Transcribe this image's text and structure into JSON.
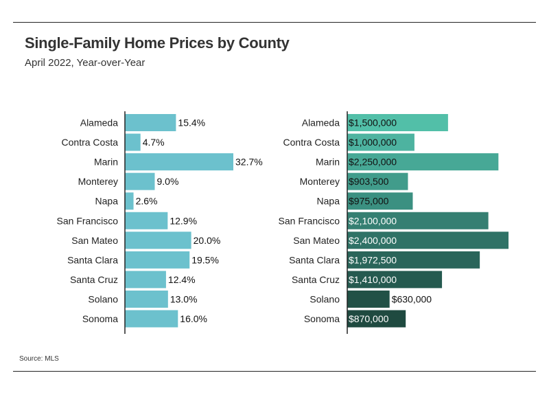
{
  "header": {
    "title": "Single-Family Home Prices by County",
    "subtitle": "April 2022, Year-over-Year"
  },
  "footer": {
    "source": "Source:  MLS"
  },
  "chart_data": [
    {
      "type": "bar",
      "orientation": "horizontal",
      "title": "",
      "xlabel": "",
      "ylabel": "",
      "grid": false,
      "categories": [
        "Alameda",
        "Contra Costa",
        "Marin",
        "Monterey",
        "Napa",
        "San Francisco",
        "San Mateo",
        "Santa Clara",
        "Santa Cruz",
        "Solano",
        "Sonoma"
      ],
      "values": [
        15.4,
        4.7,
        32.7,
        9.0,
        2.6,
        12.9,
        20.0,
        19.5,
        12.4,
        13.0,
        16.0
      ],
      "labels": [
        "15.4%",
        "4.7%",
        "32.7%",
        "9.0%",
        "2.6%",
        "12.9%",
        "20.0%",
        "19.5%",
        "12.4%",
        "13.0%",
        "16.0%"
      ],
      "xlim": [
        0,
        35
      ],
      "color": "#6cc1cd"
    },
    {
      "type": "bar",
      "orientation": "horizontal",
      "title": "",
      "xlabel": "",
      "ylabel": "",
      "grid": false,
      "categories": [
        "Alameda",
        "Contra Costa",
        "Marin",
        "Monterey",
        "Napa",
        "San Francisco",
        "San Mateo",
        "Santa Clara",
        "Santa Cruz",
        "Solano",
        "Sonoma"
      ],
      "values": [
        1500000,
        1000000,
        2250000,
        903500,
        975000,
        2100000,
        2400000,
        1972500,
        1410000,
        630000,
        870000
      ],
      "labels": [
        "$1,500,000",
        "$1,000,000",
        "$2,250,000",
        "$903,500",
        "$975,000",
        "$2,100,000",
        "$2,400,000",
        "$1,972,500",
        "$1,410,000",
        "$630,000",
        "$870,000"
      ],
      "xlim": [
        0,
        2400000
      ],
      "colors": [
        "#52bfa8",
        "#4db3a0",
        "#47a896",
        "#419c8b",
        "#3b9081",
        "#357f72",
        "#2f7266",
        "#2a655a",
        "#255a50",
        "#215146",
        "#1f4a40"
      ]
    }
  ]
}
